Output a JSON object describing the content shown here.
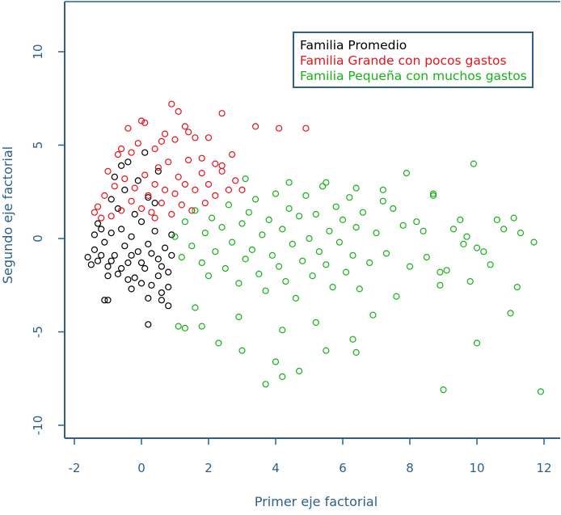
{
  "chart_data": {
    "type": "scatter",
    "title": "",
    "xlabel": "Primer eje factorial",
    "ylabel": "Segundo eje factorial",
    "xlim": [
      -2.4,
      12.5
    ],
    "ylim": [
      -10.7,
      12.4
    ],
    "x_ticks": [
      -2,
      0,
      2,
      4,
      6,
      8,
      10,
      12
    ],
    "y_ticks": [
      -10,
      -5,
      0,
      5,
      10
    ],
    "grid": false,
    "legend_position": "top-right",
    "axis_color": "#2d5f8a",
    "marker": "open-circle",
    "series": [
      {
        "name": "Familia Promedio",
        "color": "#000000",
        "points": [
          [
            -1.6,
            -1.0
          ],
          [
            -1.4,
            -0.6
          ],
          [
            -1.3,
            -1.2
          ],
          [
            -1.1,
            -0.2
          ],
          [
            -1.0,
            -1.5
          ],
          [
            -0.9,
            0.3
          ],
          [
            -0.8,
            -0.9
          ],
          [
            -0.7,
            -1.9
          ],
          [
            -0.6,
            0.5
          ],
          [
            -0.5,
            -0.4
          ],
          [
            -0.4,
            -1.3
          ],
          [
            -0.3,
            0.1
          ],
          [
            -0.2,
            -2.1
          ],
          [
            -0.1,
            -0.7
          ],
          [
            0.0,
            0.9
          ],
          [
            0.1,
            -1.6
          ],
          [
            0.2,
            -0.3
          ],
          [
            0.3,
            -2.5
          ],
          [
            0.4,
            0.4
          ],
          [
            0.5,
            -1.1
          ],
          [
            0.6,
            -2.9
          ],
          [
            0.7,
            -0.5
          ],
          [
            0.8,
            -1.8
          ],
          [
            0.9,
            0.2
          ],
          [
            -1.5,
            -1.4
          ],
          [
            -1.2,
            -0.9
          ],
          [
            -0.9,
            -1.2
          ],
          [
            -0.6,
            -1.6
          ],
          [
            -0.3,
            -0.9
          ],
          [
            0.0,
            -1.3
          ],
          [
            0.3,
            -0.8
          ],
          [
            0.6,
            -1.5
          ],
          [
            -1.3,
            0.8
          ],
          [
            -0.7,
            1.6
          ],
          [
            -0.2,
            1.3
          ],
          [
            0.4,
            1.9
          ],
          [
            -0.5,
            2.6
          ],
          [
            -0.1,
            3.1
          ],
          [
            0.2,
            2.2
          ],
          [
            -0.8,
            3.3
          ],
          [
            -0.9,
            2.1
          ],
          [
            0.5,
            3.6
          ],
          [
            -0.4,
            4.1
          ],
          [
            0.1,
            4.6
          ],
          [
            -0.6,
            3.9
          ],
          [
            0.0,
            -2.4
          ],
          [
            -0.4,
            -2.2
          ],
          [
            0.5,
            -2.0
          ],
          [
            -1.0,
            -2.0
          ],
          [
            0.8,
            -2.6
          ],
          [
            -0.3,
            -2.7
          ],
          [
            0.2,
            -3.2
          ],
          [
            0.6,
            -3.3
          ],
          [
            0.8,
            -3.6
          ],
          [
            -1.1,
            -3.3
          ],
          [
            -1.0,
            -3.3
          ],
          [
            0.2,
            -4.6
          ],
          [
            -1.4,
            0.2
          ],
          [
            -1.2,
            0.5
          ],
          [
            0.9,
            -0.9
          ]
        ]
      },
      {
        "name": "Familia Grande con pocos gastos",
        "color": "#e8121a",
        "points": [
          [
            -1.3,
            1.7
          ],
          [
            -1.1,
            2.3
          ],
          [
            -0.9,
            1.2
          ],
          [
            -0.8,
            2.8
          ],
          [
            -0.6,
            1.5
          ],
          [
            -0.5,
            3.2
          ],
          [
            -0.3,
            2.0
          ],
          [
            -0.2,
            2.7
          ],
          [
            0.0,
            1.6
          ],
          [
            0.1,
            3.4
          ],
          [
            0.2,
            2.3
          ],
          [
            0.3,
            1.4
          ],
          [
            0.4,
            2.9
          ],
          [
            0.5,
            3.8
          ],
          [
            0.6,
            1.9
          ],
          [
            0.7,
            2.6
          ],
          [
            0.8,
            4.1
          ],
          [
            0.9,
            1.3
          ],
          [
            1.0,
            2.4
          ],
          [
            1.1,
            3.3
          ],
          [
            1.2,
            1.8
          ],
          [
            1.3,
            2.9
          ],
          [
            1.4,
            4.2
          ],
          [
            1.5,
            1.5
          ],
          [
            1.6,
            2.6
          ],
          [
            1.8,
            3.5
          ],
          [
            1.9,
            1.9
          ],
          [
            2.0,
            2.9
          ],
          [
            2.2,
            2.3
          ],
          [
            2.4,
            3.6
          ],
          [
            2.6,
            2.6
          ],
          [
            2.8,
            3.1
          ],
          [
            3.0,
            2.6
          ],
          [
            -1.0,
            3.6
          ],
          [
            -0.7,
            4.5
          ],
          [
            -0.6,
            4.8
          ],
          [
            -0.4,
            5.9
          ],
          [
            0.0,
            6.3
          ],
          [
            0.1,
            6.2
          ],
          [
            0.7,
            5.6
          ],
          [
            0.9,
            7.2
          ],
          [
            1.1,
            6.8
          ],
          [
            1.3,
            6.0
          ],
          [
            1.4,
            5.7
          ],
          [
            1.6,
            5.4
          ],
          [
            2.0,
            5.4
          ],
          [
            2.4,
            6.7
          ],
          [
            3.4,
            6.0
          ],
          [
            4.1,
            5.9
          ],
          [
            4.9,
            5.9
          ],
          [
            2.7,
            4.5
          ],
          [
            2.4,
            3.9
          ],
          [
            -0.1,
            5.1
          ],
          [
            -0.3,
            4.6
          ],
          [
            0.4,
            4.8
          ],
          [
            0.6,
            5.2
          ],
          [
            1.0,
            5.3
          ],
          [
            1.8,
            4.3
          ],
          [
            -1.2,
            1.1
          ],
          [
            0.4,
            1.1
          ],
          [
            2.2,
            4.0
          ],
          [
            -1.4,
            1.4
          ]
        ]
      },
      {
        "name": "Familia Pequeña con muchos gastos",
        "color": "#16b216",
        "points": [
          [
            1.0,
            0.1
          ],
          [
            1.2,
            -1.0
          ],
          [
            1.3,
            0.9
          ],
          [
            1.5,
            -0.4
          ],
          [
            1.6,
            1.5
          ],
          [
            1.8,
            -1.3
          ],
          [
            1.9,
            0.3
          ],
          [
            2.0,
            -2.0
          ],
          [
            2.1,
            1.1
          ],
          [
            2.2,
            -0.7
          ],
          [
            2.4,
            0.6
          ],
          [
            2.5,
            -1.6
          ],
          [
            2.6,
            1.8
          ],
          [
            2.7,
            -0.2
          ],
          [
            2.9,
            -2.4
          ],
          [
            3.0,
            0.8
          ],
          [
            3.1,
            -1.1
          ],
          [
            3.2,
            1.4
          ],
          [
            3.3,
            -0.6
          ],
          [
            3.4,
            2.1
          ],
          [
            3.5,
            -1.9
          ],
          [
            3.6,
            0.2
          ],
          [
            3.7,
            -2.8
          ],
          [
            3.8,
            1.0
          ],
          [
            3.9,
            -0.9
          ],
          [
            4.0,
            2.4
          ],
          [
            4.1,
            -1.5
          ],
          [
            4.2,
            0.5
          ],
          [
            4.3,
            -2.3
          ],
          [
            4.4,
            1.6
          ],
          [
            4.5,
            -0.3
          ],
          [
            4.6,
            -3.2
          ],
          [
            4.7,
            1.2
          ],
          [
            4.8,
            -1.2
          ],
          [
            4.9,
            2.3
          ],
          [
            5.0,
            0.0
          ],
          [
            5.1,
            -2.0
          ],
          [
            5.2,
            1.3
          ],
          [
            5.3,
            -0.7
          ],
          [
            5.4,
            2.8
          ],
          [
            5.5,
            -1.4
          ],
          [
            5.6,
            0.4
          ],
          [
            5.7,
            -2.6
          ],
          [
            5.8,
            1.7
          ],
          [
            5.9,
            -0.2
          ],
          [
            6.0,
            1.0
          ],
          [
            6.1,
            -1.8
          ],
          [
            6.2,
            2.2
          ],
          [
            6.3,
            -0.9
          ],
          [
            6.4,
            0.6
          ],
          [
            6.5,
            -2.7
          ],
          [
            6.6,
            1.4
          ],
          [
            6.8,
            -1.3
          ],
          [
            7.0,
            0.3
          ],
          [
            7.2,
            2.0
          ],
          [
            7.3,
            -0.8
          ],
          [
            7.5,
            1.6
          ],
          [
            7.6,
            -3.1
          ],
          [
            7.8,
            0.7
          ],
          [
            7.9,
            3.5
          ],
          [
            8.0,
            -1.5
          ],
          [
            8.2,
            0.9
          ],
          [
            8.4,
            0.4
          ],
          [
            8.5,
            -1.0
          ],
          [
            8.7,
            2.3
          ],
          [
            8.9,
            -2.5
          ],
          [
            9.1,
            -1.7
          ],
          [
            9.3,
            0.5
          ],
          [
            9.5,
            1.0
          ],
          [
            9.6,
            -0.3
          ],
          [
            9.7,
            0.1
          ],
          [
            9.9,
            4.0
          ],
          [
            10.0,
            -5.6
          ],
          [
            10.2,
            -0.7
          ],
          [
            10.4,
            -1.4
          ],
          [
            10.6,
            1.0
          ],
          [
            10.8,
            0.5
          ],
          [
            11.0,
            -4.0
          ],
          [
            11.1,
            1.1
          ],
          [
            11.2,
            -2.6
          ],
          [
            11.3,
            0.3
          ],
          [
            11.7,
            -0.2
          ],
          [
            11.9,
            -8.2
          ],
          [
            9.0,
            -8.1
          ],
          [
            6.4,
            -6.1
          ],
          [
            6.3,
            -5.4
          ],
          [
            5.5,
            -6.0
          ],
          [
            4.7,
            -7.1
          ],
          [
            4.2,
            -7.4
          ],
          [
            4.0,
            -6.6
          ],
          [
            3.7,
            -7.8
          ],
          [
            3.0,
            -6.0
          ],
          [
            2.3,
            -5.6
          ],
          [
            4.2,
            -4.9
          ],
          [
            1.3,
            -4.8
          ],
          [
            1.1,
            -4.7
          ],
          [
            1.8,
            -4.7
          ],
          [
            2.9,
            -4.2
          ],
          [
            5.2,
            -4.5
          ],
          [
            6.9,
            -4.1
          ],
          [
            9.8,
            -2.3
          ],
          [
            8.9,
            -1.8
          ],
          [
            3.1,
            3.2
          ],
          [
            4.4,
            3.0
          ],
          [
            5.5,
            3.0
          ],
          [
            6.4,
            2.7
          ],
          [
            7.2,
            2.6
          ],
          [
            8.7,
            2.4
          ],
          [
            10.0,
            -0.5
          ],
          [
            1.6,
            -3.7
          ]
        ]
      }
    ]
  }
}
